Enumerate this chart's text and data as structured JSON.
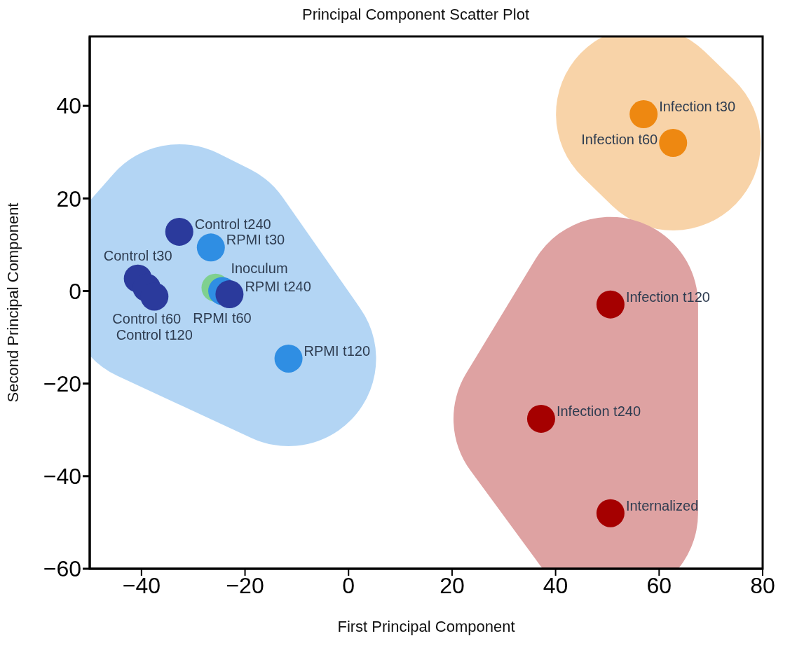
{
  "chart_data": {
    "type": "scatter",
    "title": "Principal Component Scatter Plot",
    "xlabel": "First Principal Component",
    "ylabel": "Second Principal Component",
    "xlim": [
      -50,
      80
    ],
    "ylim": [
      -60,
      55
    ],
    "xticks": [
      -40,
      -20,
      0,
      20,
      40,
      60,
      80
    ],
    "yticks": [
      -60,
      -40,
      -20,
      0,
      20,
      40
    ],
    "grid": false,
    "marker": "circle",
    "series": [
      {
        "x": [
          -26.6,
          -32.7,
          -40.7,
          -39,
          -37.5,
          -25.7,
          -24.4,
          -23,
          -11.6
        ],
        "values": [
          9.4,
          12.8,
          2.7,
          0.7,
          -1.2,
          0.7,
          0,
          -0.7,
          -14.6
        ],
        "colors": [
          "#2f8ee3",
          "#2b3a9c",
          "#2b3a9c",
          "#2b3a9c",
          "#2b3a9c",
          "#7fd08f",
          "#2f8ee3",
          "#2b3a9c",
          "#2f8ee3"
        ],
        "value_labels": [
          "RPMI t30",
          "Control t240",
          "Control t30",
          "Control t60",
          "Control t120",
          "Inoculum",
          "RPMI t60",
          "RPMI t240",
          "RPMI t120"
        ]
      },
      {
        "x": [
          57,
          62.7
        ],
        "values": [
          38.2,
          32
        ],
        "colors": [
          "#ee8811",
          "#ee8811"
        ],
        "value_labels": [
          "Infection t30",
          "Infection t60"
        ]
      },
      {
        "x": [
          50.6,
          37.2,
          50.6
        ],
        "values": [
          -2.9,
          -27.6,
          -48
        ],
        "colors": [
          "#a50000",
          "#a50000",
          "#a50000"
        ],
        "value_labels": [
          "Infection t120",
          "Infection t240",
          "Internalized"
        ]
      }
    ]
  }
}
